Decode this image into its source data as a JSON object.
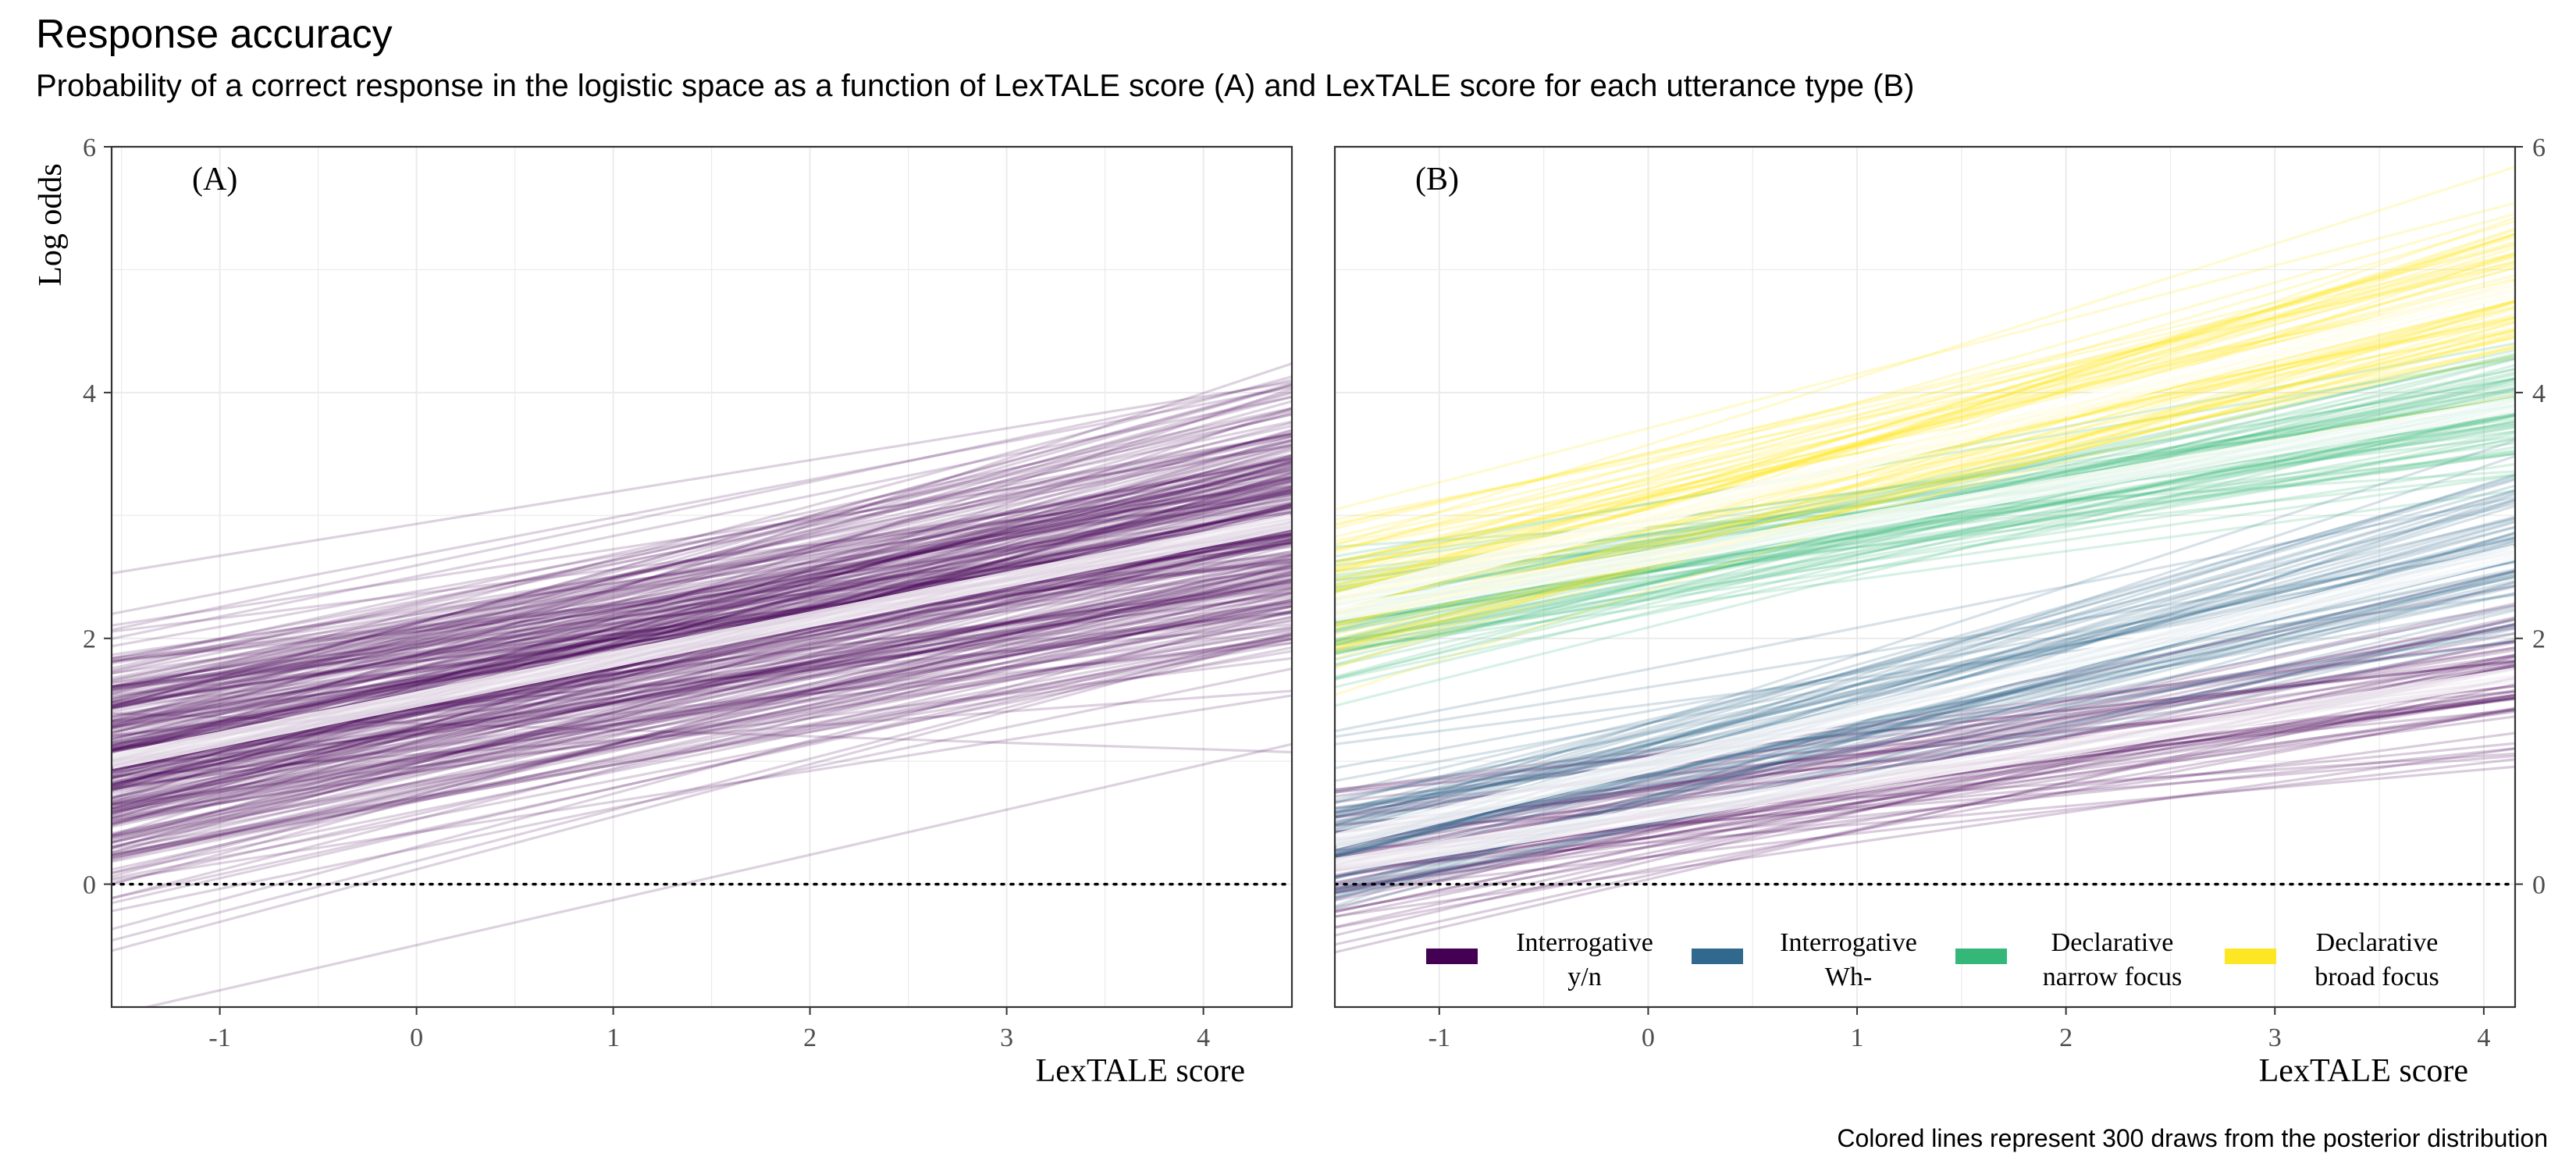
{
  "title": "Response accuracy",
  "subtitle": "Probability of a correct response in the logistic space as a function of LexTALE score (A) and LexTALE score for each utterance type (B)",
  "caption": "Colored lines represent 300 draws from the posterior distribution",
  "chart_data": [
    {
      "type": "line",
      "panel_label": "(A)",
      "xlabel": "LexTALE score",
      "ylabel": "Log odds",
      "xlim": [
        -1.55,
        4.45
      ],
      "ylim": [
        -1,
        6
      ],
      "x_ticks": [
        -1,
        0,
        1,
        2,
        3,
        4
      ],
      "y_ticks": [
        0,
        2,
        4,
        6
      ],
      "reference_line_y": 0,
      "draws_count": 300,
      "draw_color": "#440154",
      "series": [
        {
          "x": [
            -1.55,
            4.45
          ],
          "y": [
            1.0,
            2.95
          ],
          "mean_line": true
        }
      ]
    },
    {
      "type": "line",
      "panel_label": "(B)",
      "xlabel": "LexTALE score",
      "xlim": [
        -1.5,
        4.15
      ],
      "ylim": [
        -1,
        6
      ],
      "x_ticks": [
        -1,
        0,
        1,
        2,
        3,
        4
      ],
      "y_ticks": [
        0,
        2,
        4,
        6
      ],
      "reference_line_y": 0,
      "draws_count": 300,
      "legend_position": "bottom-inside",
      "series": [
        {
          "name": "Interrogative\ny/n",
          "color": "#440154",
          "x": [
            -1.5,
            4.15
          ],
          "y": [
            0.15,
            1.7
          ]
        },
        {
          "name": "Interrogative\nWh-",
          "color": "#31688E",
          "x": [
            -1.5,
            4.15
          ],
          "y": [
            0.35,
            2.7
          ]
        },
        {
          "name": "Declarative\nnarrow focus",
          "color": "#35B779",
          "x": [
            -1.5,
            4.15
          ],
          "y": [
            2.2,
            3.9
          ]
        },
        {
          "name": "Declarative\nbroad focus",
          "color": "#FDE725",
          "x": [
            -1.5,
            4.15
          ],
          "y": [
            2.3,
            4.85
          ]
        }
      ]
    }
  ]
}
